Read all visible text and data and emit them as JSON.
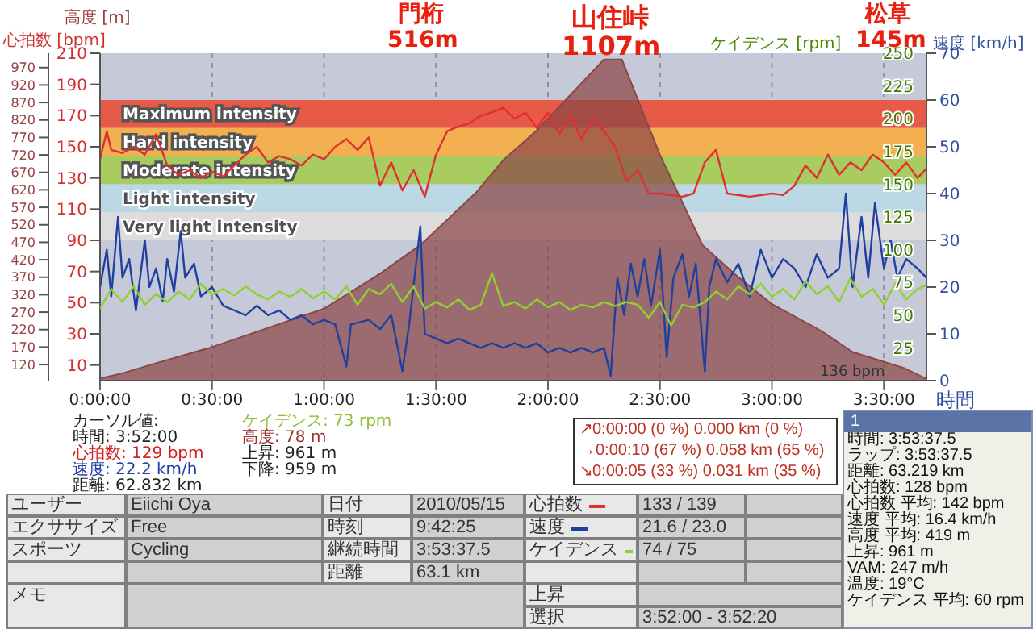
{
  "chart_data": [
    {
      "type": "line",
      "ylabel": "心拍数 [bpm]",
      "y3label": "高度 [m]",
      "y2label": "速度 [km/h]",
      "xlabel": "時間",
      "xlim": [
        0,
        3.69
      ],
      "xticks": [
        {
          "value": 0,
          "label": "0:00:00"
        },
        {
          "value": 0.5,
          "label": "0:30:00"
        },
        {
          "value": 1,
          "label": "1:00:00"
        },
        {
          "value": 1.5,
          "label": "1:30:00"
        },
        {
          "value": 2,
          "label": "2:00:00"
        },
        {
          "value": 2.5,
          "label": "2:30:00"
        },
        {
          "value": 3,
          "label": "3:00:00"
        },
        {
          "value": 3.5,
          "label": "3:30:00"
        }
      ],
      "ylim": [
        0,
        210
      ],
      "yticks": [
        10,
        30,
        50,
        70,
        90,
        110,
        130,
        150,
        170,
        190,
        210
      ],
      "y3lim": [
        74,
        1011
      ],
      "y3ticks": [
        120,
        170,
        220,
        270,
        320,
        370,
        420,
        470,
        520,
        570,
        620,
        670,
        720,
        770,
        820,
        870,
        920,
        970
      ],
      "y2lim": [
        0,
        70
      ],
      "y2ticks": [
        0,
        10,
        20,
        30,
        40,
        50,
        60,
        70
      ],
      "grid": "x",
      "legend": "bottom",
      "bands": [
        {
          "axis": "y",
          "from": 162,
          "to": 180,
          "label": "Maximum intensity",
          "color": "#e85a48"
        },
        {
          "axis": "y",
          "from": 144,
          "to": 162,
          "label": "Hard intensity",
          "color": "#f2b050"
        },
        {
          "axis": "y",
          "from": 126,
          "to": 144,
          "label": "Moderate intensity",
          "color": "#a8cc60"
        },
        {
          "axis": "y",
          "from": 108,
          "to": 126,
          "label": "Light intensity",
          "color": "#bcd8e4"
        },
        {
          "axis": "y",
          "from": 90,
          "to": 108,
          "label": "Very light intensity",
          "color": "#dcdcdc"
        }
      ],
      "series": [
        {
          "type": "area",
          "axis": "y3",
          "color": "#8c4646",
          "x": [
            0,
            0.1,
            0.25,
            0.5,
            0.75,
            1.0,
            1.25,
            1.43,
            1.68,
            1.8,
            1.95,
            2.25,
            2.33,
            2.5,
            2.69,
            2.85,
            3.0,
            3.22,
            3.36,
            3.59,
            3.69
          ],
          "values": [
            80,
            95,
            124,
            170,
            225,
            280,
            380,
            462,
            613,
            705,
            790,
            993,
            993,
            720,
            462,
            370,
            293,
            216,
            156,
            110,
            79
          ]
        },
        {
          "name": "心拍数",
          "axis": "y",
          "color": "#e03030",
          "x": [
            0,
            0.03,
            0.05,
            0.1,
            0.15,
            0.2,
            0.25,
            0.3,
            0.35,
            0.4,
            0.45,
            0.5,
            0.55,
            0.6,
            0.65,
            0.7,
            0.75,
            0.8,
            0.85,
            0.9,
            0.95,
            1.0,
            1.05,
            1.1,
            1.15,
            1.2,
            1.25,
            1.3,
            1.35,
            1.4,
            1.45,
            1.5,
            1.55,
            1.6,
            1.65,
            1.7,
            1.75,
            1.8,
            1.85,
            1.9,
            1.95,
            2.0,
            2.05,
            2.1,
            2.15,
            2.2,
            2.25,
            2.3,
            2.35,
            2.4,
            2.45,
            2.5,
            2.6,
            2.65,
            2.7,
            2.75,
            2.8,
            2.9,
            3.0,
            3.05,
            3.1,
            3.15,
            3.2,
            3.25,
            3.3,
            3.35,
            3.4,
            3.45,
            3.5,
            3.55,
            3.6,
            3.65,
            3.69
          ],
          "values": [
            142,
            160,
            148,
            146,
            150,
            145,
            158,
            138,
            132,
            135,
            130,
            134,
            131,
            138,
            145,
            150,
            140,
            144,
            142,
            138,
            145,
            142,
            150,
            155,
            148,
            156,
            125,
            140,
            122,
            135,
            118,
            145,
            160,
            163,
            165,
            170,
            172,
            175,
            168,
            172,
            162,
            172,
            158,
            170,
            155,
            168,
            160,
            150,
            128,
            135,
            120,
            120,
            118,
            120,
            140,
            148,
            120,
            118,
            120,
            119,
            125,
            138,
            130,
            145,
            132,
            140,
            135,
            145,
            140,
            132,
            140,
            130,
            136
          ]
        },
        {
          "name": "速度",
          "axis": "y2",
          "color": "#2040a0",
          "x": [
            0,
            0.03,
            0.05,
            0.08,
            0.1,
            0.13,
            0.16,
            0.2,
            0.22,
            0.25,
            0.28,
            0.3,
            0.33,
            0.36,
            0.38,
            0.42,
            0.45,
            0.5,
            0.55,
            0.6,
            0.65,
            0.7,
            0.75,
            0.8,
            0.85,
            0.9,
            0.95,
            1.0,
            1.05,
            1.1,
            1.12,
            1.2,
            1.25,
            1.3,
            1.35,
            1.38,
            1.43,
            1.45,
            1.5,
            1.55,
            1.6,
            1.65,
            1.7,
            1.75,
            1.8,
            1.85,
            1.9,
            1.95,
            2.0,
            2.05,
            2.1,
            2.15,
            2.2,
            2.25,
            2.28,
            2.31,
            2.34,
            2.37,
            2.4,
            2.43,
            2.46,
            2.5,
            2.53,
            2.56,
            2.6,
            2.63,
            2.66,
            2.7,
            2.72,
            2.75,
            2.8,
            2.85,
            2.9,
            2.95,
            3.0,
            3.05,
            3.1,
            3.15,
            3.2,
            3.25,
            3.3,
            3.33,
            3.36,
            3.4,
            3.43,
            3.46,
            3.5,
            3.53,
            3.56,
            3.6,
            3.65,
            3.69
          ],
          "values": [
            20,
            28,
            18,
            35,
            22,
            26,
            15,
            30,
            20,
            24,
            17,
            26,
            19,
            32,
            22,
            25,
            18,
            20,
            16,
            15,
            14,
            16,
            14,
            15,
            13,
            14,
            12,
            13,
            12,
            3,
            12,
            13,
            11,
            14,
            2,
            12,
            33,
            10,
            9,
            8,
            9,
            8,
            7,
            8,
            7,
            8,
            7,
            8,
            6,
            7,
            6,
            7,
            6,
            7,
            1,
            22,
            14,
            25,
            18,
            26,
            16,
            28,
            5,
            22,
            27,
            18,
            25,
            2,
            20,
            26,
            21,
            25,
            18,
            28,
            22,
            26,
            24,
            20,
            27,
            22,
            24,
            40,
            20,
            35,
            22,
            38,
            24,
            30,
            22,
            26,
            24,
            22
          ]
        }
      ],
      "annotations": [
        "門桁 516m",
        "山住峠 1107m",
        "松草 145m",
        "136 bpm",
        "カーソル値:",
        "時間: 3:52:00",
        "心拍数: 129 bpm",
        "速度: 22.2 km/h",
        "距離: 62.832 km",
        "ケイデンス: 73 rpm",
        "高度: 78 m",
        "上昇: 961 m",
        "下降: 959 m",
        "↗0:00:00 (0 %) 0.000 km (0 %)",
        "→0:00:10 (67 %) 0.058 km (65 %)",
        "↘0:00:05 (33 %) 0.031 km (35 %)",
        "ユーザー",
        "Eiichi Oya",
        "日付",
        "2010/05/15",
        "133 / 139",
        "エクササイズ",
        "Free",
        "時刻",
        "9:42:25",
        "21.6 / 23.0",
        "スポーツ",
        "Cycling",
        "継続時間",
        "3:53:37.5",
        "74 / 75",
        "距離",
        "63.1 km",
        "メモ",
        "上昇",
        "選択",
        "3:52:00 - 3:52:20",
        "1",
        "時間: 3:53:37.5",
        "ラップ: 3:53:37.5",
        "距離: 63.219 km",
        "心拍数: 128 bpm",
        "心拍数 平均: 142 bpm",
        "速度 平均: 16.4 km/h",
        "高度 平均: 419 m",
        "上昇: 961 m",
        "VAM: 247 m/h",
        "温度: 19°C",
        "ケイデンス 平均: 60 rpm"
      ]
    },
    {
      "type": "line",
      "ylabel": "ケイデンス [rpm]",
      "xlim": [
        0,
        3.69
      ],
      "ylim": [
        0,
        250
      ],
      "yticks": [
        25,
        50,
        75,
        100,
        125,
        150,
        175,
        200,
        225,
        250
      ],
      "tick_labels": "y",
      "legend": "bottom",
      "series": [
        {
          "name": "ケイデンス",
          "color": "#90d030",
          "x": [
            0,
            0.05,
            0.1,
            0.15,
            0.2,
            0.25,
            0.3,
            0.35,
            0.4,
            0.45,
            0.5,
            0.55,
            0.6,
            0.65,
            0.7,
            0.75,
            0.8,
            0.85,
            0.9,
            0.95,
            1.0,
            1.05,
            1.1,
            1.15,
            1.2,
            1.25,
            1.3,
            1.35,
            1.4,
            1.45,
            1.5,
            1.55,
            1.6,
            1.65,
            1.7,
            1.75,
            1.8,
            1.85,
            1.9,
            1.95,
            2.0,
            2.05,
            2.1,
            2.15,
            2.2,
            2.25,
            2.3,
            2.35,
            2.4,
            2.45,
            2.5,
            2.55,
            2.6,
            2.65,
            2.7,
            2.75,
            2.8,
            2.85,
            2.9,
            2.95,
            3.0,
            3.05,
            3.1,
            3.15,
            3.2,
            3.25,
            3.3,
            3.35,
            3.4,
            3.45,
            3.5,
            3.55,
            3.6,
            3.65,
            3.69
          ],
          "values": [
            55,
            70,
            60,
            72,
            58,
            66,
            60,
            68,
            62,
            74,
            66,
            70,
            65,
            72,
            66,
            62,
            68,
            64,
            70,
            63,
            68,
            62,
            72,
            58,
            70,
            66,
            74,
            60,
            72,
            55,
            60,
            56,
            62,
            54,
            58,
            82,
            57,
            60,
            55,
            62,
            56,
            60,
            54,
            58,
            56,
            60,
            57,
            60,
            58,
            48,
            60,
            42,
            58,
            56,
            60,
            68,
            62,
            72,
            66,
            74,
            64,
            70,
            62,
            76,
            66,
            72,
            60,
            78,
            64,
            70,
            58,
            74,
            62,
            70,
            73
          ]
        }
      ]
    }
  ]
}
